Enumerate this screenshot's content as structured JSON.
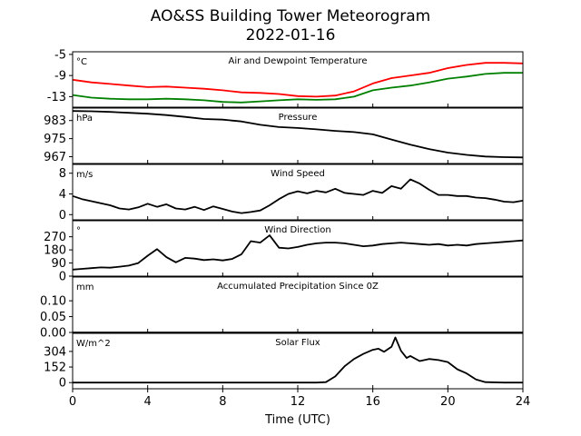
{
  "title_line1": "AO&SS Building Tower Meteorogram",
  "title_line2": "2022-01-16",
  "chart_data": {
    "type": "line",
    "xlabel": "Time (UTC)",
    "x_ticks": [
      "0",
      "4",
      "8",
      "12",
      "16",
      "20",
      "24"
    ],
    "xlim": [
      0,
      24
    ],
    "panels": [
      {
        "id": "temp",
        "title": "Air and Dewpoint Temperature",
        "unit": "°C",
        "ylim": [
          -15,
          -4.5
        ],
        "yticks": [
          "-5",
          "-9",
          "-13"
        ],
        "ytick_values": [
          -5,
          -9,
          -13
        ],
        "series": [
          {
            "color": "#ff0000",
            "x": [
              0,
              1,
              2,
              3,
              4,
              5,
              6,
              7,
              8,
              9,
              10,
              11,
              12,
              13,
              14,
              15,
              16,
              17,
              18,
              19,
              20,
              21,
              22,
              23,
              24
            ],
            "y": [
              -9.8,
              -10.3,
              -10.6,
              -10.9,
              -11.2,
              -11.1,
              -11.3,
              -11.5,
              -11.8,
              -12.2,
              -12.3,
              -12.5,
              -12.9,
              -13.0,
              -12.8,
              -12.0,
              -10.5,
              -9.5,
              -9.0,
              -8.5,
              -7.6,
              -7.0,
              -6.6,
              -6.6,
              -6.7
            ]
          },
          {
            "color": "#008000",
            "x": [
              0,
              1,
              2,
              3,
              4,
              5,
              6,
              7,
              8,
              9,
              10,
              11,
              12,
              13,
              14,
              15,
              16,
              17,
              18,
              19,
              20,
              21,
              22,
              23,
              24
            ],
            "y": [
              -12.7,
              -13.2,
              -13.4,
              -13.5,
              -13.5,
              -13.4,
              -13.5,
              -13.7,
              -14.0,
              -14.1,
              -13.9,
              -13.7,
              -13.5,
              -13.6,
              -13.5,
              -13.0,
              -11.8,
              -11.3,
              -10.9,
              -10.3,
              -9.6,
              -9.2,
              -8.7,
              -8.5,
              -8.5
            ]
          }
        ]
      },
      {
        "id": "pressure",
        "title": "Pressure",
        "unit": "hPa",
        "ylim": [
          964,
          988.5
        ],
        "yticks": [
          "983",
          "975",
          "967"
        ],
        "ytick_values": [
          983,
          975,
          967
        ],
        "series": [
          {
            "color": "#000000",
            "x": [
              0,
              1,
              2,
              3,
              4,
              5,
              6,
              7,
              8,
              9,
              10,
              11,
              12,
              13,
              14,
              15,
              16,
              17,
              18,
              19,
              20,
              21,
              22,
              23,
              24
            ],
            "y": [
              987.2,
              987.1,
              986.8,
              986.4,
              986.0,
              985.4,
              984.6,
              983.7,
              983.4,
              982.6,
              981.1,
              980.1,
              979.7,
              979.1,
              978.4,
              977.9,
              976.9,
              974.6,
              972.3,
              970.4,
              968.8,
              967.8,
              967.1,
              966.8,
              966.7
            ]
          }
        ]
      },
      {
        "id": "wind_speed",
        "title": "Wind Speed",
        "unit": "m/s",
        "ylim": [
          -1,
          9.7
        ],
        "yticks": [
          "8",
          "4",
          "0"
        ],
        "ytick_values": [
          8,
          4,
          0
        ],
        "series": [
          {
            "color": "#000000",
            "x": [
              0,
              0.5,
              1,
              1.5,
              2,
              2.5,
              3,
              3.5,
              4,
              4.5,
              5,
              5.5,
              6,
              6.5,
              7,
              7.5,
              8,
              8.5,
              9,
              9.5,
              10,
              10.5,
              11,
              11.5,
              12,
              12.5,
              13,
              13.5,
              14,
              14.5,
              15,
              15.5,
              16,
              16.5,
              17,
              17.5,
              18,
              18.5,
              19,
              19.5,
              20,
              20.5,
              21,
              21.5,
              22,
              22.5,
              23,
              23.5,
              24
            ],
            "y": [
              3.6,
              3.0,
              2.6,
              2.2,
              1.8,
              1.2,
              1.0,
              1.4,
              2.1,
              1.5,
              2.0,
              1.2,
              1.0,
              1.5,
              0.9,
              1.6,
              1.1,
              0.6,
              0.3,
              0.5,
              0.8,
              1.8,
              3.0,
              4.0,
              4.5,
              4.1,
              4.6,
              4.3,
              5.0,
              4.2,
              4.0,
              3.8,
              4.6,
              4.2,
              5.5,
              5.0,
              6.8,
              6.0,
              4.8,
              3.8,
              3.8,
              3.6,
              3.6,
              3.3,
              3.2,
              2.9,
              2.5,
              2.4,
              2.7
            ]
          }
        ]
      },
      {
        "id": "wind_dir",
        "title": "Wind Direction",
        "unit": "°",
        "ylim": [
          0,
          380
        ],
        "yticks": [
          "270",
          "180",
          "90",
          "0"
        ],
        "ytick_values": [
          270,
          180,
          90,
          0
        ],
        "series": [
          {
            "color": "#000000",
            "x": [
              0,
              0.5,
              1,
              1.5,
              2,
              2.5,
              3,
              3.5,
              4,
              4.5,
              5,
              5.5,
              6,
              6.5,
              7,
              7.5,
              8,
              8.5,
              9,
              9.5,
              10,
              10.5,
              11,
              11.5,
              12,
              12.5,
              13,
              13.5,
              14,
              14.5,
              15,
              15.5,
              16,
              16.5,
              17,
              17.5,
              18,
              18.5,
              19,
              19.5,
              20,
              20.5,
              21,
              21.5,
              22,
              22.5,
              23,
              23.5,
              24
            ],
            "y": [
              45,
              50,
              55,
              60,
              58,
              65,
              72,
              90,
              140,
              185,
              130,
              95,
              125,
              120,
              110,
              115,
              108,
              118,
              150,
              240,
              230,
              280,
              195,
              190,
              200,
              215,
              225,
              230,
              230,
              225,
              215,
              205,
              210,
              220,
              225,
              230,
              225,
              220,
              215,
              220,
              210,
              215,
              210,
              220,
              225,
              230,
              235,
              240,
              245
            ]
          }
        ]
      },
      {
        "id": "precip",
        "title": "Accumulated Precipitation Since 0Z",
        "unit": "mm",
        "ylim": [
          0,
          0.175
        ],
        "yticks": [
          "0.10",
          "0.05",
          "0.00"
        ],
        "ytick_values": [
          0.1,
          0.05,
          0.0
        ],
        "series": [
          {
            "color": "#000000",
            "x": [
              0,
              24
            ],
            "y": [
              0,
              0
            ]
          }
        ]
      },
      {
        "id": "solar",
        "title": "Solar Flux",
        "unit": "W/m^2",
        "ylim": [
          -60,
          480
        ],
        "yticks": [
          "304",
          "152",
          "0"
        ],
        "ytick_values": [
          304,
          152,
          0
        ],
        "series": [
          {
            "color": "#000000",
            "x": [
              0,
              1,
              2,
              3,
              4,
              5,
              6,
              7,
              8,
              9,
              10,
              11,
              12,
              13,
              13.5,
              14,
              14.5,
              15,
              15.5,
              16,
              16.3,
              16.6,
              17,
              17.2,
              17.5,
              17.8,
              18,
              18.5,
              19,
              19.5,
              20,
              20.5,
              21,
              21.5,
              22,
              23,
              24
            ],
            "y": [
              0,
              0,
              0,
              0,
              0,
              0,
              0,
              0,
              0,
              0,
              0,
              0,
              0,
              0,
              5,
              60,
              160,
              230,
              280,
              320,
              330,
              300,
              350,
              440,
              310,
              240,
              260,
              210,
              230,
              220,
              200,
              130,
              90,
              30,
              5,
              0,
              0
            ]
          }
        ]
      }
    ]
  }
}
